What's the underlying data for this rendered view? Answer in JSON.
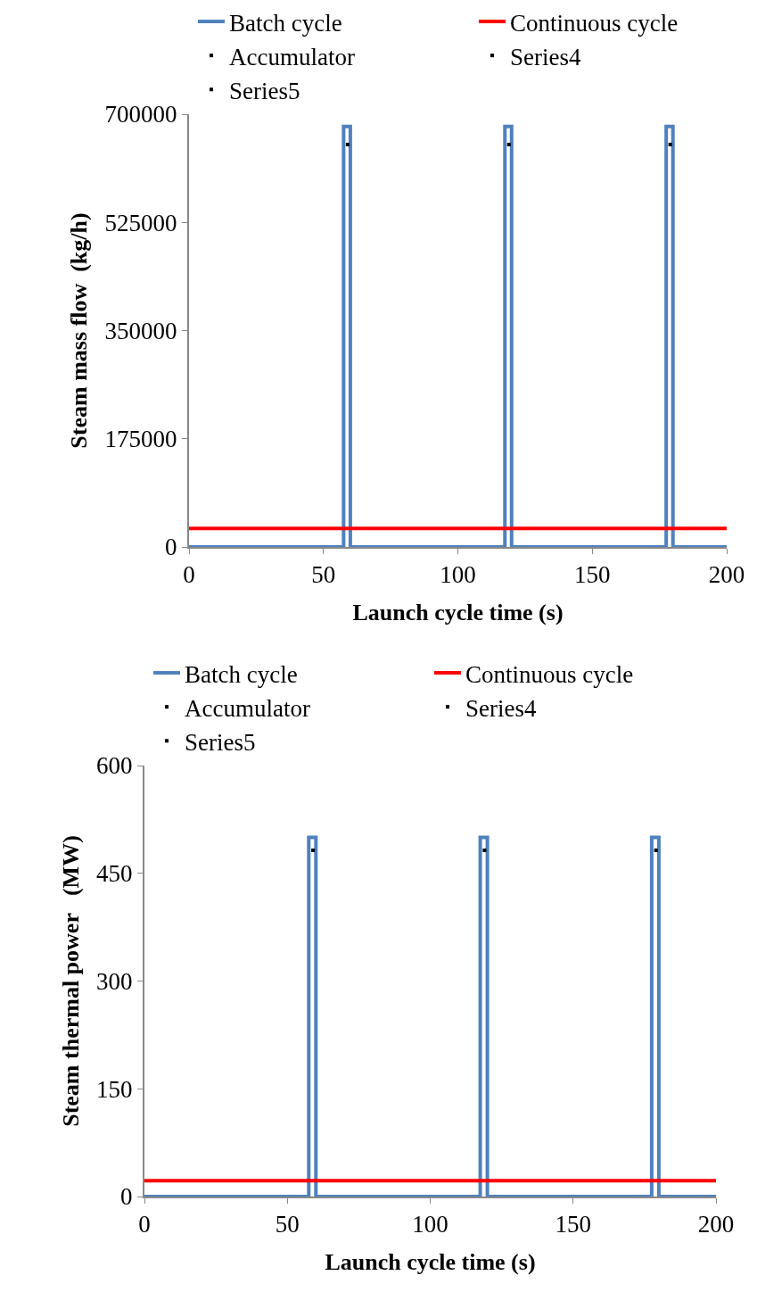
{
  "chart_data": [
    {
      "type": "line",
      "xlabel": "Launch cycle time (s)",
      "ylabel": "Steam mass flow  (kg/h)",
      "xlim": [
        0,
        200
      ],
      "xticks": [
        0,
        50,
        100,
        150,
        200
      ],
      "ylim": [
        0,
        700000
      ],
      "yticks": [
        0,
        175000,
        350000,
        525000,
        700000
      ],
      "legend": "top",
      "marker": "none",
      "series": [
        {
          "name": "Batch cycle",
          "color": "#4f81bd",
          "x": [
            0,
            57.5,
            57.5,
            60,
            60,
            117.5,
            117.5,
            120,
            120,
            177.5,
            177.5,
            180,
            180,
            200
          ],
          "values": [
            0,
            0,
            680000,
            680000,
            0,
            0,
            680000,
            680000,
            0,
            0,
            680000,
            680000,
            0,
            0
          ]
        },
        {
          "name": "Continuous cycle",
          "color": "#ff0000",
          "x": [
            0,
            200
          ],
          "values": [
            30000,
            30000
          ]
        },
        {
          "name": "Accumulator",
          "color": "#000000",
          "type": "scatter",
          "marker": "square",
          "x": [
            59
          ],
          "values": [
            651000
          ]
        },
        {
          "name": "Series4",
          "color": "#000000",
          "type": "scatter",
          "marker": "square",
          "x": [
            119
          ],
          "values": [
            651000
          ]
        },
        {
          "name": "Series5",
          "color": "#000000",
          "type": "scatter",
          "marker": "square",
          "x": [
            179
          ],
          "values": [
            651000
          ]
        }
      ]
    },
    {
      "type": "line",
      "xlabel": "Launch cycle time (s)",
      "ylabel": "Steam thermal power   (MW)",
      "xlim": [
        0,
        200
      ],
      "xticks": [
        0,
        50,
        100,
        150,
        200
      ],
      "ylim": [
        0,
        600
      ],
      "yticks": [
        0,
        150,
        300,
        450,
        600
      ],
      "legend": "top",
      "marker": "none",
      "series": [
        {
          "name": "Batch cycle",
          "color": "#4f81bd",
          "x": [
            0,
            57.5,
            57.5,
            60,
            60,
            117.5,
            117.5,
            120,
            120,
            177.5,
            177.5,
            180,
            180,
            200
          ],
          "values": [
            0,
            0,
            500,
            500,
            0,
            0,
            500,
            500,
            0,
            0,
            500,
            500,
            0,
            0
          ]
        },
        {
          "name": "Continuous cycle",
          "color": "#ff0000",
          "x": [
            0,
            200
          ],
          "values": [
            22,
            22
          ]
        },
        {
          "name": "Accumulator",
          "color": "#000000",
          "type": "scatter",
          "marker": "square",
          "x": [
            59
          ],
          "values": [
            482
          ]
        },
        {
          "name": "Series4",
          "color": "#000000",
          "type": "scatter",
          "marker": "square",
          "x": [
            119
          ],
          "values": [
            482
          ]
        },
        {
          "name": "Series5",
          "color": "#000000",
          "type": "scatter",
          "marker": "square",
          "x": [
            179
          ],
          "values": [
            482
          ]
        }
      ]
    }
  ]
}
